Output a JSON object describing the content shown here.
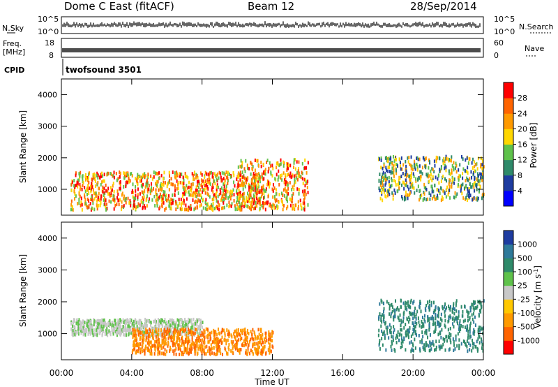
{
  "header": {
    "station": "Dome C East (fitACF)",
    "beam": "Beam 12",
    "date": "28/Sep/2014"
  },
  "noise_panel": {
    "left_label": "N.Sky",
    "left_ticks": [
      "10^5",
      "10^0"
    ],
    "right_ticks": [
      "10^5",
      "10^0"
    ],
    "right_label": "N.Search"
  },
  "freq_panel": {
    "left_label": "Freq.",
    "left_unit": "[MHz]",
    "left_ticks": [
      "18",
      "8"
    ],
    "right_ticks": [
      "60",
      "0"
    ],
    "right_label": "Nave"
  },
  "cpid": {
    "label": "CPID",
    "value": "twofsound 3501"
  },
  "colors": {
    "power": [
      "#0000ff",
      "#1e3ca0",
      "#2f8a6a",
      "#5fc24b",
      "#ffd700",
      "#ff9a00",
      "#ff6400",
      "#ff0000"
    ],
    "velocity": [
      "#1e3ca0",
      "#2f7a9a",
      "#2f8a6a",
      "#5fc24b",
      "#c8c8c8",
      "#ffc800",
      "#ff9a00",
      "#ff6400",
      "#ff0000"
    ],
    "ground_scatter": "#c8c8c8"
  },
  "chart_data": [
    {
      "type": "heatmap",
      "title": "",
      "xlabel": "",
      "ylabel": "Slant Range [km]",
      "x_range": [
        "00:00",
        "00:00"
      ],
      "ylim": [
        180,
        4500
      ],
      "y_ticks": [
        "1000",
        "2000",
        "3000",
        "4000"
      ],
      "colorbar": {
        "label": "Power [dB]",
        "ticks": [
          "4",
          "8",
          "12",
          "16",
          "20",
          "24",
          "28"
        ],
        "range": [
          0,
          32
        ]
      },
      "echo_regions": [
        {
          "t_start": "00:30",
          "t_end": "11:30",
          "range_km": [
            400,
            1600
          ],
          "level": "high"
        },
        {
          "t_start": "10:00",
          "t_end": "14:00",
          "range_km": [
            400,
            2000
          ],
          "level": "high"
        },
        {
          "t_start": "18:00",
          "t_end": "24:00",
          "range_km": [
            700,
            2100
          ],
          "level": "medium"
        }
      ]
    },
    {
      "type": "heatmap",
      "title": "",
      "xlabel": "Time UT",
      "ylabel": "Slant Range [km]",
      "x_ticks": [
        "00:00",
        "04:00",
        "08:00",
        "12:00",
        "16:00",
        "20:00",
        "00:00"
      ],
      "ylim": [
        180,
        4500
      ],
      "y_ticks": [
        "1000",
        "2000",
        "3000",
        "4000"
      ],
      "colorbar": {
        "label": "Velocity [m s",
        "label_exp": "-1",
        "label_close": "]",
        "ticks": [
          "1000",
          "500",
          "100",
          "25",
          "-25",
          "-100",
          "-500",
          "-1000"
        ]
      },
      "echo_regions": [
        {
          "t_start": "00:30",
          "t_end": "08:00",
          "range_km": [
            1000,
            1500
          ],
          "velocity": "ground scatter"
        },
        {
          "t_start": "04:00",
          "t_end": "12:00",
          "range_km": [
            400,
            1200
          ],
          "velocity": "-100 to -500"
        },
        {
          "t_start": "18:00",
          "t_end": "24:00",
          "range_km": [
            500,
            2100
          ],
          "velocity": "100 to 500"
        }
      ]
    }
  ]
}
